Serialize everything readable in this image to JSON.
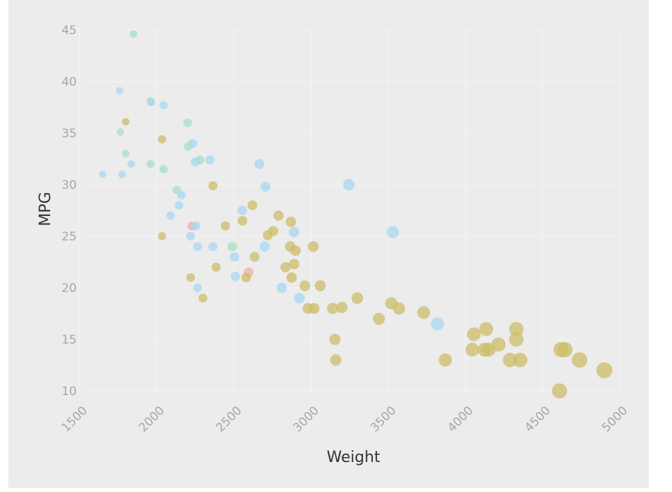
{
  "chart_data": {
    "type": "scatter",
    "xlabel": "Weight",
    "ylabel": "MPG",
    "xlim": [
      1500,
      5000
    ],
    "ylim": [
      10,
      45
    ],
    "x_ticks": [
      "1500",
      "2000",
      "2500",
      "3000",
      "3500",
      "4000",
      "4500",
      "5000"
    ],
    "y_ticks": [
      "10",
      "15",
      "20",
      "25",
      "30",
      "35",
      "40",
      "45"
    ],
    "grid": true,
    "legend": "none",
    "size_encoding": "point size increases with weight",
    "series": [
      {
        "color": "#eeb1ae",
        "points": [
          {
            "x": 2227,
            "y": 26.0
          },
          {
            "x": 2596,
            "y": 21.5
          }
        ]
      },
      {
        "color": "#ccbd6a",
        "points": [
          {
            "x": 1800,
            "y": 36.1
          },
          {
            "x": 2035,
            "y": 34.4
          },
          {
            "x": 2365,
            "y": 29.9
          },
          {
            "x": 2035,
            "y": 25.0
          },
          {
            "x": 2620,
            "y": 28.0
          },
          {
            "x": 2445,
            "y": 26.0
          },
          {
            "x": 2556,
            "y": 26.5
          },
          {
            "x": 2635,
            "y": 23.0
          },
          {
            "x": 2385,
            "y": 22.0
          },
          {
            "x": 2220,
            "y": 21.0
          },
          {
            "x": 2300,
            "y": 19.0
          },
          {
            "x": 2580,
            "y": 21.0
          },
          {
            "x": 2790,
            "y": 27.0
          },
          {
            "x": 2870,
            "y": 26.4
          },
          {
            "x": 2755,
            "y": 25.5
          },
          {
            "x": 2720,
            "y": 25.1
          },
          {
            "x": 2865,
            "y": 24.0
          },
          {
            "x": 2900,
            "y": 23.6
          },
          {
            "x": 2890,
            "y": 22.3
          },
          {
            "x": 2835,
            "y": 22.0
          },
          {
            "x": 2875,
            "y": 21.0
          },
          {
            "x": 3015,
            "y": 24.0
          },
          {
            "x": 2960,
            "y": 20.2
          },
          {
            "x": 3060,
            "y": 20.2
          },
          {
            "x": 2980,
            "y": 18.0
          },
          {
            "x": 3020,
            "y": 18.0
          },
          {
            "x": 3140,
            "y": 18.0
          },
          {
            "x": 3200,
            "y": 18.1
          },
          {
            "x": 3300,
            "y": 19.0
          },
          {
            "x": 3155,
            "y": 15.0
          },
          {
            "x": 3160,
            "y": 13.0
          },
          {
            "x": 3440,
            "y": 17.0
          },
          {
            "x": 3520,
            "y": 18.5
          },
          {
            "x": 3570,
            "y": 18.0
          },
          {
            "x": 3730,
            "y": 17.6
          },
          {
            "x": 3870,
            "y": 13.0
          },
          {
            "x": 4055,
            "y": 15.5
          },
          {
            "x": 4135,
            "y": 16.0
          },
          {
            "x": 4045,
            "y": 14.0
          },
          {
            "x": 4125,
            "y": 14.0
          },
          {
            "x": 4150,
            "y": 14.0
          },
          {
            "x": 4215,
            "y": 14.5
          },
          {
            "x": 4290,
            "y": 13.0
          },
          {
            "x": 4330,
            "y": 16.0
          },
          {
            "x": 4330,
            "y": 15.0
          },
          {
            "x": 4355,
            "y": 13.0
          },
          {
            "x": 4620,
            "y": 14.0
          },
          {
            "x": 4645,
            "y": 14.0
          },
          {
            "x": 4740,
            "y": 13.0
          },
          {
            "x": 4610,
            "y": 10.0
          },
          {
            "x": 4900,
            "y": 12.0
          }
        ]
      },
      {
        "color": "#a6e0c2",
        "points": [
          {
            "x": 1850,
            "y": 44.6
          },
          {
            "x": 1960,
            "y": 38.1
          },
          {
            "x": 1765,
            "y": 35.1
          },
          {
            "x": 1800,
            "y": 33.0
          },
          {
            "x": 1960,
            "y": 32.0
          },
          {
            "x": 2045,
            "y": 31.5
          },
          {
            "x": 2200,
            "y": 36.0
          },
          {
            "x": 2205,
            "y": 33.7
          },
          {
            "x": 2280,
            "y": 32.4
          },
          {
            "x": 2130,
            "y": 29.5
          },
          {
            "x": 2490,
            "y": 24.0
          }
        ]
      },
      {
        "color": "#a8d7f2",
        "points": [
          {
            "x": 1760,
            "y": 39.1
          },
          {
            "x": 1965,
            "y": 38.0
          },
          {
            "x": 2045,
            "y": 37.7
          },
          {
            "x": 1650,
            "y": 31.0
          },
          {
            "x": 1775,
            "y": 31.0
          },
          {
            "x": 1835,
            "y": 32.0
          },
          {
            "x": 2235,
            "y": 34.0
          },
          {
            "x": 2250,
            "y": 32.2
          },
          {
            "x": 2345,
            "y": 32.4
          },
          {
            "x": 2665,
            "y": 32.0
          },
          {
            "x": 2160,
            "y": 29.0
          },
          {
            "x": 2145,
            "y": 28.0
          },
          {
            "x": 2090,
            "y": 27.0
          },
          {
            "x": 2255,
            "y": 26.0
          },
          {
            "x": 2555,
            "y": 27.5
          },
          {
            "x": 2705,
            "y": 29.8
          },
          {
            "x": 3245,
            "y": 30.0
          },
          {
            "x": 2220,
            "y": 25.0
          },
          {
            "x": 2265,
            "y": 24.0
          },
          {
            "x": 2365,
            "y": 24.0
          },
          {
            "x": 2505,
            "y": 23.0
          },
          {
            "x": 2510,
            "y": 21.1
          },
          {
            "x": 2700,
            "y": 24.0
          },
          {
            "x": 2890,
            "y": 25.4
          },
          {
            "x": 2265,
            "y": 20.0
          },
          {
            "x": 2810,
            "y": 20.0
          },
          {
            "x": 2925,
            "y": 19.0
          },
          {
            "x": 3530,
            "y": 25.4
          },
          {
            "x": 3820,
            "y": 16.5
          }
        ]
      }
    ]
  }
}
